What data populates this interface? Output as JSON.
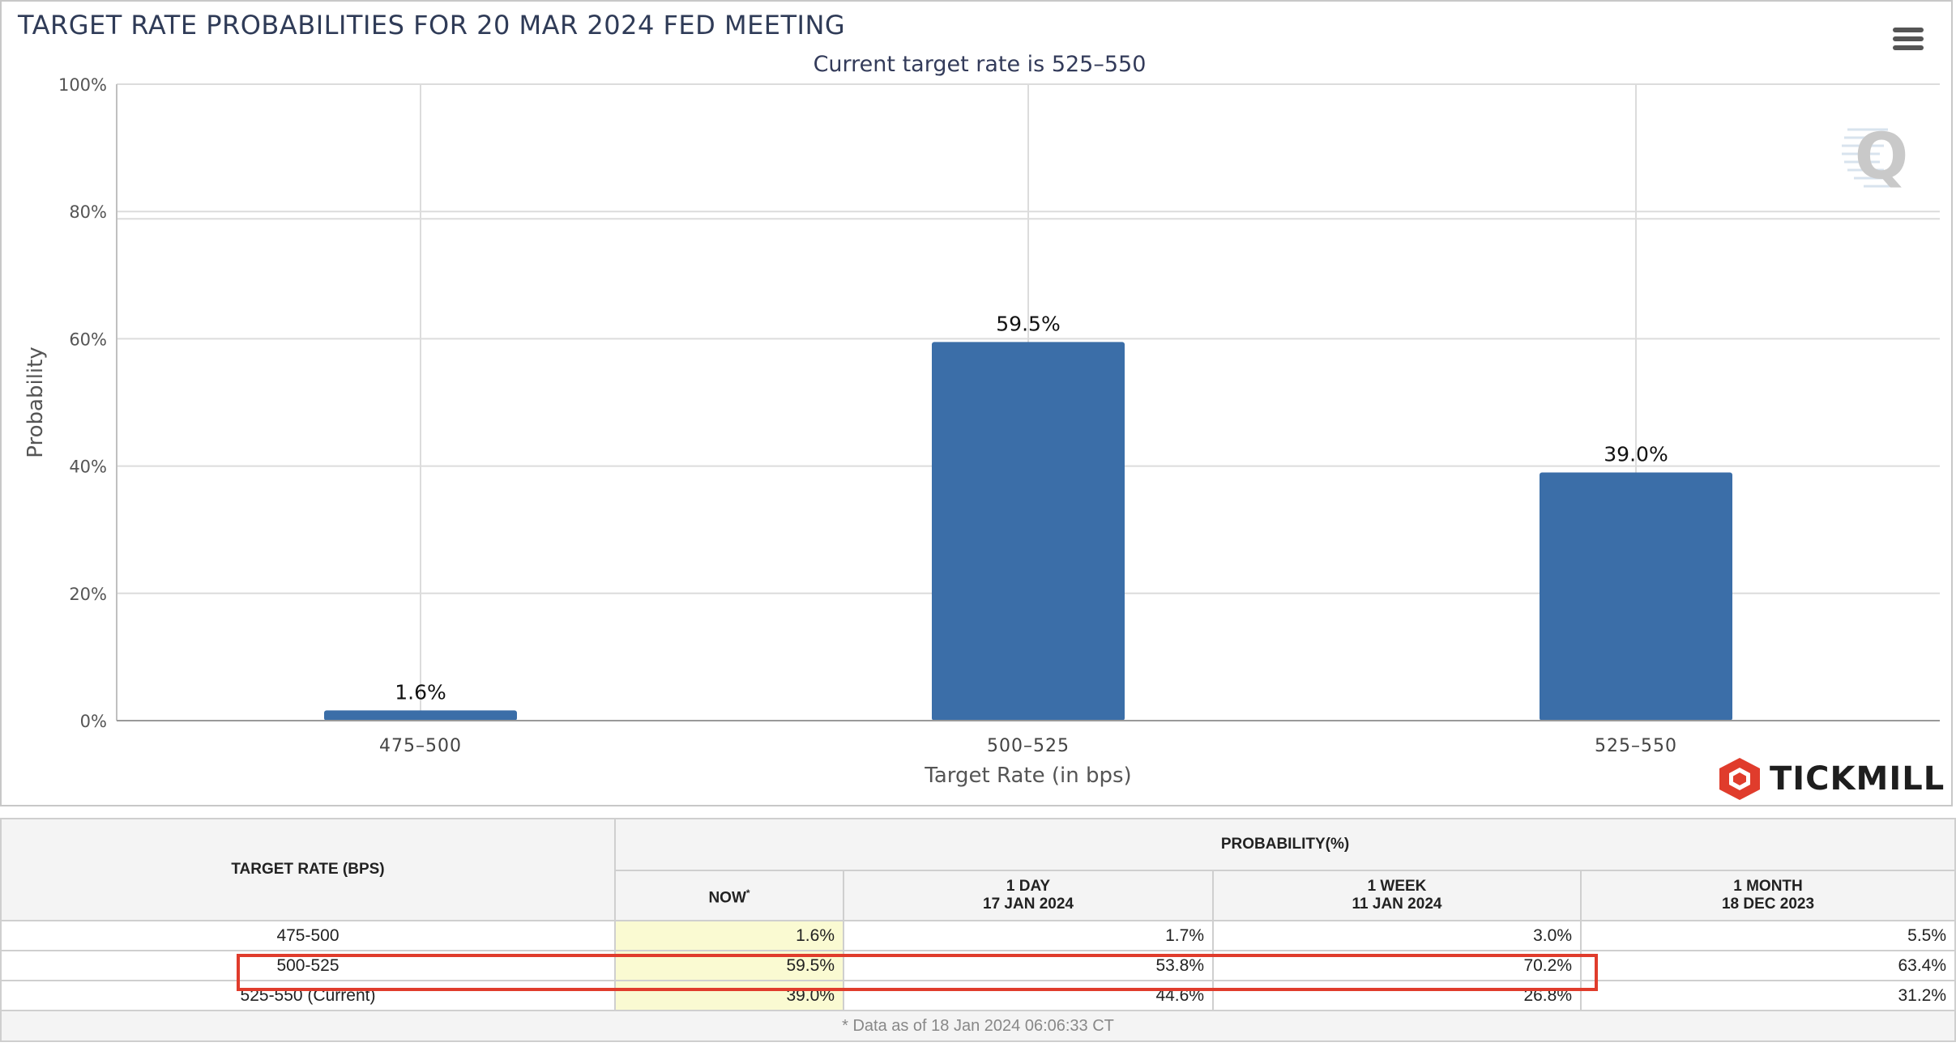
{
  "header": {
    "title": "TARGET RATE PROBABILITIES FOR 20 MAR 2024 FED MEETING",
    "subtitle": "Current target rate is 525–550"
  },
  "menu": {
    "icon": "hamburger-menu-icon"
  },
  "watermark": {
    "icon": "q-watermark-icon"
  },
  "logo": {
    "text": "TICKMILL",
    "icon": "tickmill-hexagon-icon",
    "color": "#e03c2c"
  },
  "chart_data": {
    "type": "bar",
    "title": "TARGET RATE PROBABILITIES FOR 20 MAR 2024 FED MEETING",
    "subtitle": "Current target rate is 525–550",
    "categories": [
      "475–500",
      "500–525",
      "525–550"
    ],
    "values": [
      1.6,
      59.5,
      39.0
    ],
    "data_labels": [
      "1.6%",
      "59.5%",
      "39.0%"
    ],
    "xlabel": "Target Rate (in bps)",
    "ylabel": "Probability",
    "ylim": [
      0,
      100
    ],
    "yticks": [
      "0%",
      "20%",
      "40%",
      "60%",
      "80%",
      "100%"
    ],
    "yticks_values": [
      0,
      20,
      40,
      60,
      80,
      100
    ],
    "grid": true,
    "bar_color": "#3b6ea8"
  },
  "table": {
    "col_target": "TARGET RATE (BPS)",
    "col_probability": "PROBABILITY(%)",
    "sub_now": "NOW",
    "sub_now_mark": "*",
    "sub_1day_label": "1 DAY",
    "sub_1day_date": "17 JAN 2024",
    "sub_1week_label": "1 WEEK",
    "sub_1week_date": "11 JAN 2024",
    "sub_1month_label": "1 MONTH",
    "sub_1month_date": "18 DEC 2023",
    "rows": [
      {
        "rate": "475-500",
        "now": "1.6%",
        "day": "1.7%",
        "week": "3.0%",
        "month": "5.5%"
      },
      {
        "rate": "500-525",
        "now": "59.5%",
        "day": "53.8%",
        "week": "70.2%",
        "month": "63.4%"
      },
      {
        "rate": "525-550 (Current)",
        "now": "39.0%",
        "day": "44.6%",
        "week": "26.8%",
        "month": "31.2%"
      }
    ],
    "footer": "* Data as of 18 Jan 2024 06:06:33 CT",
    "highlight_color": "#e03c2c"
  }
}
